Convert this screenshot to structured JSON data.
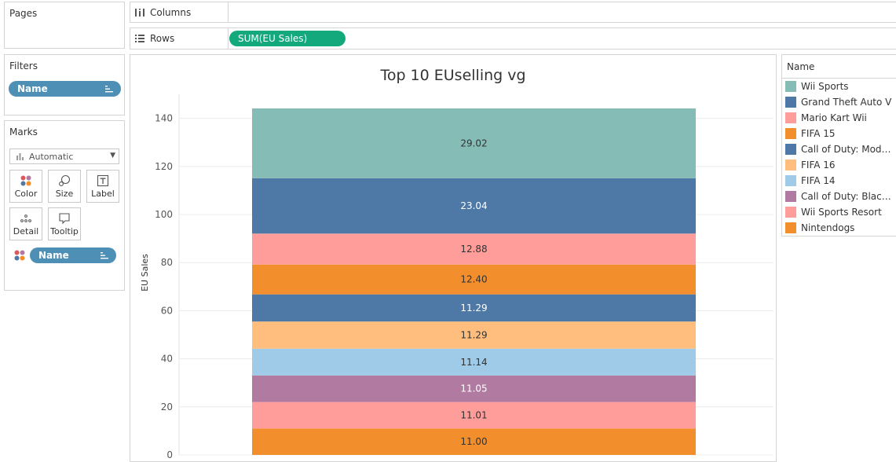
{
  "panels": {
    "pages": "Pages",
    "filters": "Filters",
    "marks": "Marks"
  },
  "filters": {
    "pills": [
      "Name"
    ]
  },
  "marks": {
    "type": "Automatic",
    "buttons": {
      "color": "Color",
      "size": "Size",
      "label": "Label",
      "detail": "Detail",
      "tooltip": "Tooltip"
    },
    "field_pill": "Name"
  },
  "shelves": {
    "columns_label": "Columns",
    "rows_label": "Rows",
    "rows_pill": "SUM(EU Sales)"
  },
  "legend": {
    "title": "Name",
    "items": [
      {
        "label": "Wii Sports",
        "color": "#86bcb6"
      },
      {
        "label": "Grand Theft Auto V",
        "color": "#4e79a7"
      },
      {
        "label": "Mario Kart Wii",
        "color": "#ff9d9a"
      },
      {
        "label": "FIFA 15",
        "color": "#f28e2b"
      },
      {
        "label": "Call of Duty: Modern ...",
        "color": "#4e79a7"
      },
      {
        "label": "FIFA 16",
        "color": "#ffbe7d"
      },
      {
        "label": "FIFA 14",
        "color": "#a0cbe8"
      },
      {
        "label": "Call of Duty: Black O...",
        "color": "#b07aa1"
      },
      {
        "label": "Wii Sports Resort",
        "color": "#ff9d9a"
      },
      {
        "label": "Nintendogs",
        "color": "#f28e2b"
      }
    ]
  },
  "chart_data": {
    "type": "bar",
    "stacked": true,
    "title": "Top 10 EUselling vg",
    "ylabel": "EU Sales",
    "xlabel": "",
    "ylim": [
      0,
      150
    ],
    "yticks": [
      0,
      20,
      40,
      60,
      80,
      100,
      120,
      140
    ],
    "grid": true,
    "series": [
      {
        "name": "Nintendogs",
        "value": 11.0,
        "label": "11.00",
        "color": "#f28e2b",
        "label_color": "#333333"
      },
      {
        "name": "Wii Sports Resort",
        "value": 11.01,
        "label": "11.01",
        "color": "#ff9d9a",
        "label_color": "#333333"
      },
      {
        "name": "Call of Duty: Black O...",
        "value": 11.05,
        "label": "11.05",
        "color": "#b07aa1",
        "label_color": "#ffffff"
      },
      {
        "name": "FIFA 14",
        "value": 11.14,
        "label": "11.14",
        "color": "#a0cbe8",
        "label_color": "#333333"
      },
      {
        "name": "FIFA 16",
        "value": 11.29,
        "label": "11.29",
        "color": "#ffbe7d",
        "label_color": "#333333"
      },
      {
        "name": "Call of Duty: Modern ...",
        "value": 11.29,
        "label": "11.29",
        "color": "#4e79a7",
        "label_color": "#ffffff"
      },
      {
        "name": "FIFA 15",
        "value": 12.4,
        "label": "12.40",
        "color": "#f28e2b",
        "label_color": "#333333"
      },
      {
        "name": "Mario Kart Wii",
        "value": 12.88,
        "label": "12.88",
        "color": "#ff9d9a",
        "label_color": "#333333"
      },
      {
        "name": "Grand Theft Auto V",
        "value": 23.04,
        "label": "23.04",
        "color": "#4e79a7",
        "label_color": "#ffffff"
      },
      {
        "name": "Wii Sports",
        "value": 29.02,
        "label": "29.02",
        "color": "#86bcb6",
        "label_color": "#333333"
      }
    ]
  }
}
